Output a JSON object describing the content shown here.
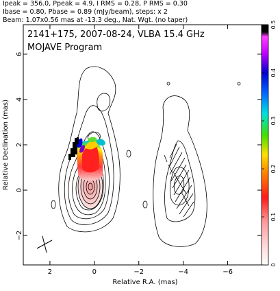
{
  "header": {
    "line1": "Ipeak = 356.0, Ppeak = 4.9, I RMS = 0.28, P RMS = 0.30",
    "line2": "Ibase = 0.80, Pbase = 0.89 (mJy/beam), steps: x 2",
    "line3": "Beam: 1.07x0.56 mas at -13.3 deg., Nat. Wgt. (no taper)"
  },
  "panel": {
    "title_line1": "2141+175, 2007-08-24, VLBA 15.4 GHz",
    "title_line2": "MOJAVE Program"
  },
  "chart_data": {
    "type": "heatmap",
    "xlabel": "Relative R.A. (mas)",
    "ylabel": "Relative Declination (mas)",
    "xlim": [
      3.2,
      -7.8
    ],
    "ylim": [
      -3.3,
      7.3
    ],
    "x_ticks": [
      2,
      0,
      -2,
      -4,
      -6
    ],
    "x_tick_labels": [
      "2",
      "0",
      "−2",
      "−4",
      "−6"
    ],
    "y_ticks": [
      -2,
      0,
      2,
      4,
      6
    ],
    "y_tick_labels": [
      "−2",
      "0",
      "2",
      "4",
      "6"
    ],
    "colorbar": {
      "range": [
        0,
        0.5
      ],
      "ticks": [
        0,
        0.1,
        0.2,
        0.3,
        0.4,
        0.5
      ],
      "tick_labels": [
        "0",
        "0.1",
        "0.2",
        "0.3",
        "0.4",
        "0.5"
      ]
    },
    "colors": {
      "total_intensity_fill": "#f6c4c4",
      "polarization_peak": "#ff0000",
      "polarization_high": "#000000"
    }
  }
}
